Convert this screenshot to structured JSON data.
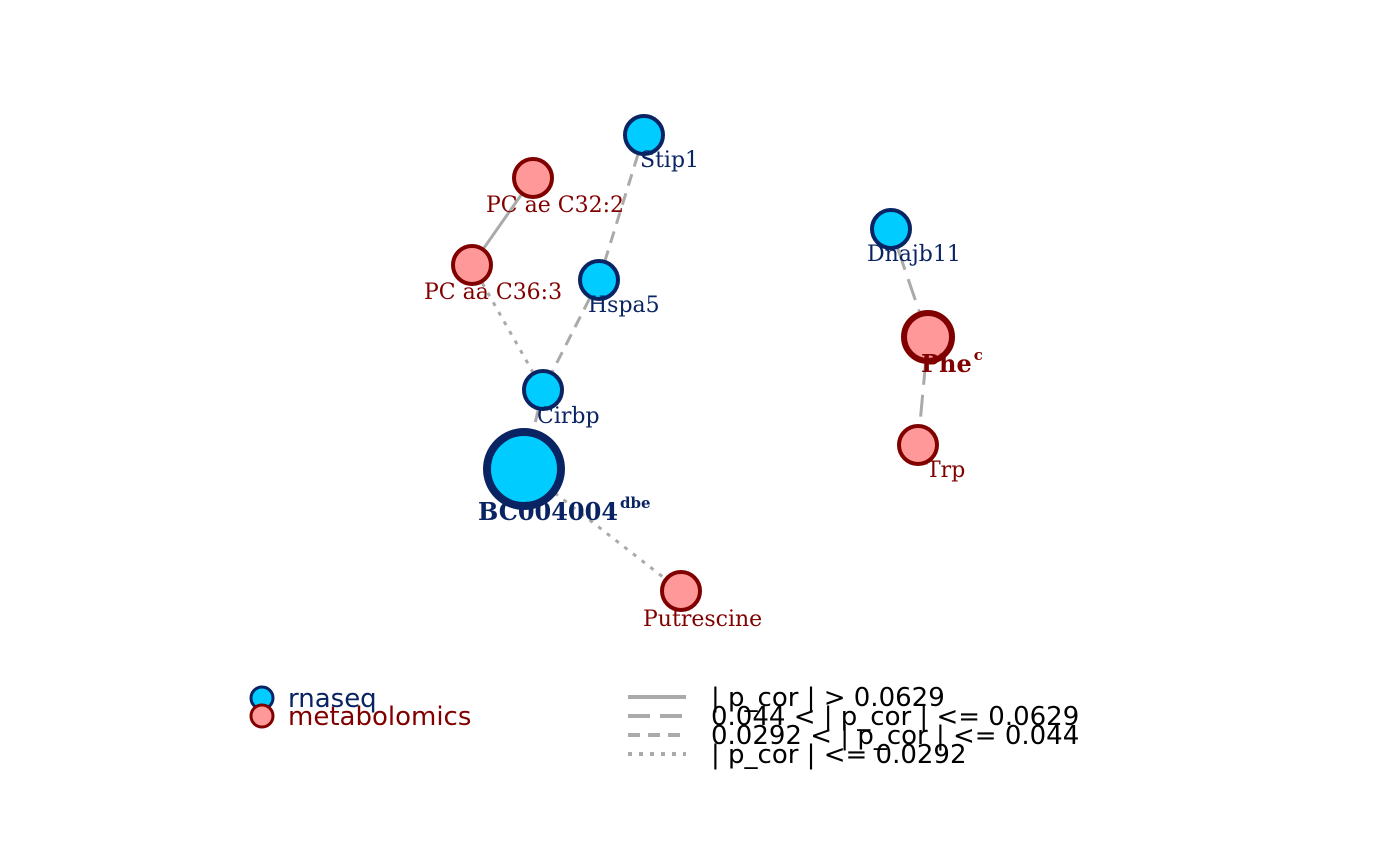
{
  "colors": {
    "rnaseq_fill": "#00CCFF",
    "rnaseq_stroke": "#0A2463",
    "rnaseq_text": "#0A2463",
    "metab_fill": "#FF9999",
    "metab_stroke": "#800000",
    "metab_text": "#800000",
    "edge": "#AAAAAA",
    "legend_text": "#000000"
  },
  "nodes": {
    "stip1": {
      "label": "Stip1",
      "type": "rnaseq"
    },
    "pc_ae": {
      "label": "PC ae C32:2",
      "type": "metabolomics"
    },
    "pc_aa": {
      "label": "PC aa C36:3",
      "type": "metabolomics"
    },
    "hspa5": {
      "label": "Hspa5",
      "type": "rnaseq"
    },
    "cirbp": {
      "label": "Cirbp",
      "type": "rnaseq"
    },
    "bc004004": {
      "label": "BC004004",
      "sup": "dbe",
      "type": "rnaseq"
    },
    "putrescine": {
      "label": "Putrescine",
      "type": "metabolomics"
    },
    "dnajb11": {
      "label": "Dnajb11",
      "type": "rnaseq"
    },
    "phe": {
      "label": "Phe",
      "sup": "c",
      "type": "metabolomics"
    },
    "trp": {
      "label": "Trp",
      "type": "metabolomics"
    }
  },
  "edges": [
    {
      "from": "pc_ae",
      "to": "pc_aa",
      "style": "solid"
    },
    {
      "from": "stip1",
      "to": "hspa5",
      "style": "dashed"
    },
    {
      "from": "pc_aa",
      "to": "cirbp",
      "style": "dotted"
    },
    {
      "from": "hspa5",
      "to": "cirbp",
      "style": "dashed"
    },
    {
      "from": "cirbp",
      "to": "bc004004",
      "style": "dashed"
    },
    {
      "from": "bc004004",
      "to": "putrescine",
      "style": "dotted"
    },
    {
      "from": "dnajb11",
      "to": "phe",
      "style": "longdash"
    },
    {
      "from": "phe",
      "to": "trp",
      "style": "longdash"
    }
  ],
  "legend": {
    "types": [
      {
        "label": "rnaseq",
        "type": "rnaseq"
      },
      {
        "label": "metabolomics",
        "type": "metabolomics"
      }
    ],
    "edges": [
      {
        "label": "| p_cor | > 0.0629",
        "style": "solid"
      },
      {
        "label": "0.044 < | p_cor | <= 0.0629",
        "style": "longdash"
      },
      {
        "label": "0.0292 < | p_cor | <= 0.044",
        "style": "dashed"
      },
      {
        "label": "| p_cor | <= 0.0292",
        "style": "dotted"
      }
    ]
  }
}
